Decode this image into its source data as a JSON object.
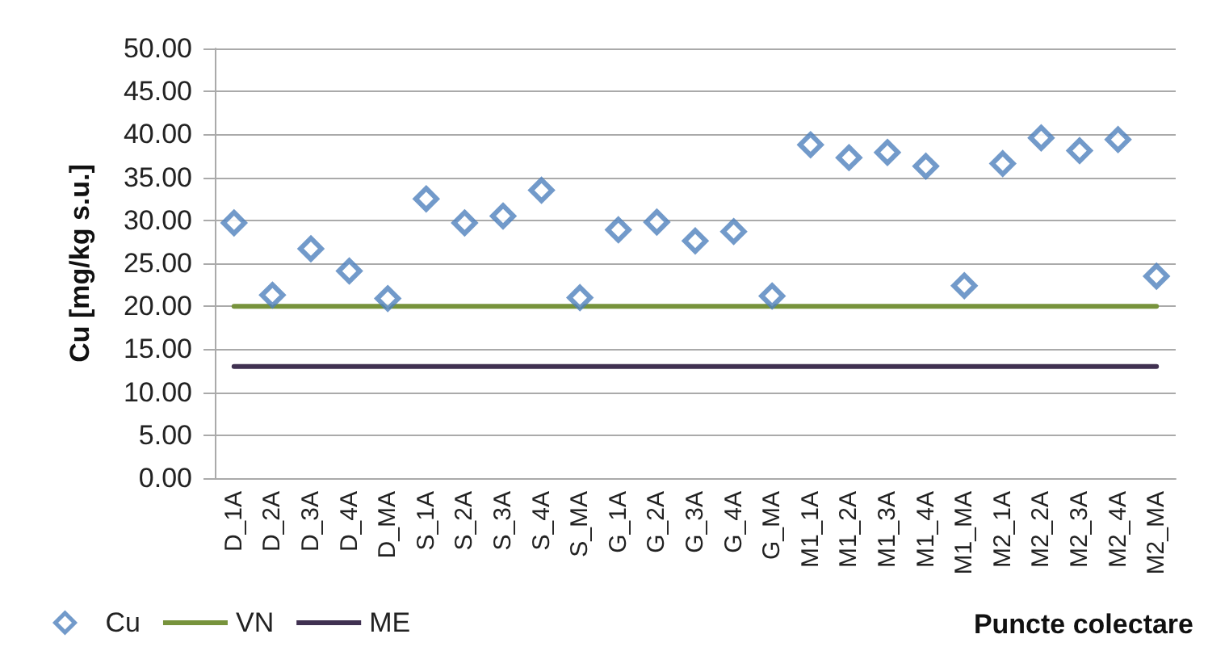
{
  "chart_data": {
    "type": "scatter",
    "ylabel": "Cu [mg/kg s.u.]",
    "xlabel": "Puncte colectare",
    "categories": [
      "D_1A",
      "D_2A",
      "D_3A",
      "D_4A",
      "D_MA",
      "S_1A",
      "S_2A",
      "S_3A",
      "S_4A",
      "S_MA",
      "G_1A",
      "G_2A",
      "G_3A",
      "G_4A",
      "G_MA",
      "M1_1A",
      "M1_2A",
      "M1_3A",
      "M1_4A",
      "M1_MA",
      "M2_1A",
      "M2_2A",
      "M2_3A",
      "M2_4A",
      "M2_MA"
    ],
    "series": [
      {
        "name": "Cu",
        "marker": "diamond",
        "color": "#4f81bd",
        "values": [
          29.7,
          21.3,
          26.7,
          24.1,
          20.9,
          32.5,
          29.7,
          30.5,
          33.5,
          21.0,
          28.9,
          29.8,
          27.6,
          28.7,
          21.2,
          38.8,
          37.3,
          37.9,
          36.3,
          22.4,
          36.6,
          39.6,
          38.1,
          39.4,
          23.5
        ]
      },
      {
        "name": "VN",
        "type": "line",
        "marker": "none",
        "color": "#77933c",
        "values": [
          20,
          20,
          20,
          20,
          20,
          20,
          20,
          20,
          20,
          20,
          20,
          20,
          20,
          20,
          20,
          20,
          20,
          20,
          20,
          20,
          20,
          20,
          20,
          20,
          20
        ]
      },
      {
        "name": "ME",
        "type": "line",
        "marker": "none",
        "color": "#403151",
        "values": [
          13,
          13,
          13,
          13,
          13,
          13,
          13,
          13,
          13,
          13,
          13,
          13,
          13,
          13,
          13,
          13,
          13,
          13,
          13,
          13,
          13,
          13,
          13,
          13,
          13
        ]
      }
    ],
    "ylim": [
      0,
      50
    ],
    "yticks": [
      {
        "value": 0,
        "label": "0.00"
      },
      {
        "value": 5,
        "label": "5.00"
      },
      {
        "value": 10,
        "label": "10.00"
      },
      {
        "value": 15,
        "label": "15.00"
      },
      {
        "value": 20,
        "label": "20.00"
      },
      {
        "value": 25,
        "label": "25.00"
      },
      {
        "value": 30,
        "label": "30.00"
      },
      {
        "value": 35,
        "label": "35.00"
      },
      {
        "value": 40,
        "label": "40.00"
      },
      {
        "value": 45,
        "label": "45.00"
      },
      {
        "value": 50,
        "label": "50.00"
      }
    ],
    "grid": "y",
    "legend": "bottom left"
  }
}
